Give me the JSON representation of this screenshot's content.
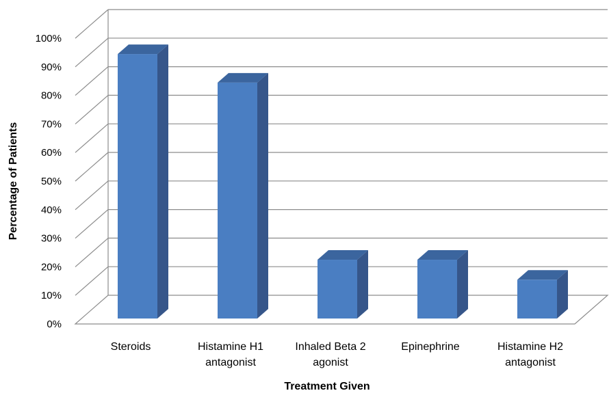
{
  "chart_data": {
    "type": "bar",
    "style": "3d-column",
    "categories": [
      [
        "Steroids"
      ],
      [
        "Histamine H1",
        "antagonist"
      ],
      [
        "Inhaled Beta 2",
        "agonist"
      ],
      [
        "Epinephrine"
      ],
      [
        "Histamine H2",
        "antagonist"
      ]
    ],
    "values": [
      94,
      84,
      22,
      22,
      15
    ],
    "unit": "%",
    "xlabel": "Treatment Given",
    "ylabel": "Percentage of Patients",
    "ylim": [
      0,
      100
    ],
    "yticks": [
      "0%",
      "10%",
      "20%",
      "30%",
      "40%",
      "50%",
      "60%",
      "70%",
      "80%",
      "90%",
      "100%"
    ],
    "grid": true,
    "legend": "none",
    "colors": {
      "bar_front": "#4a7ec2",
      "bar_side": "#36568a",
      "bar_top": "#3b659e",
      "grid": "#8c8c8c"
    }
  }
}
